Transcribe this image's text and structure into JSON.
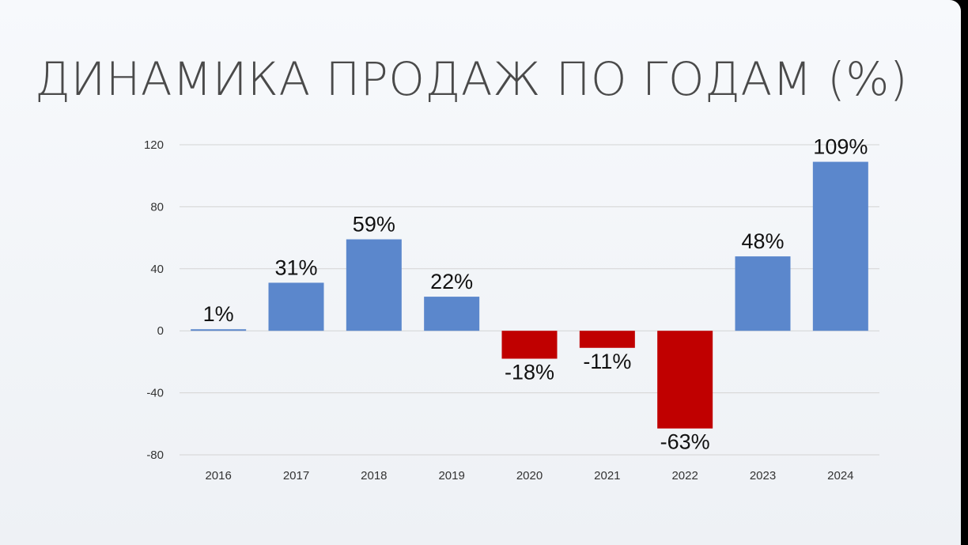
{
  "title": "ДИНАМИКА ПРОДАЖ ПО ГОДАМ (%)",
  "chart_data": {
    "type": "bar",
    "title": "ДИНАМИКА ПРОДАЖ ПО ГОДАМ (%)",
    "xlabel": "",
    "ylabel": "",
    "categories": [
      "2016",
      "2017",
      "2018",
      "2019",
      "2020",
      "2021",
      "2022",
      "2023",
      "2024"
    ],
    "values": [
      1,
      31,
      59,
      22,
      -18,
      -11,
      -63,
      48,
      109
    ],
    "data_labels": [
      "1%",
      "31%",
      "59%",
      "22%",
      "-18%",
      "-11%",
      "-63%",
      "48%",
      "109%"
    ],
    "ylim": [
      -80,
      120
    ],
    "yticks": [
      "120",
      "80",
      "40",
      "0",
      "-40",
      "-80"
    ],
    "grid": true,
    "legend": "none",
    "colors": {
      "positive": "#5b87cc",
      "negative": "#c00000",
      "gridline": "#d4d4d4"
    }
  }
}
